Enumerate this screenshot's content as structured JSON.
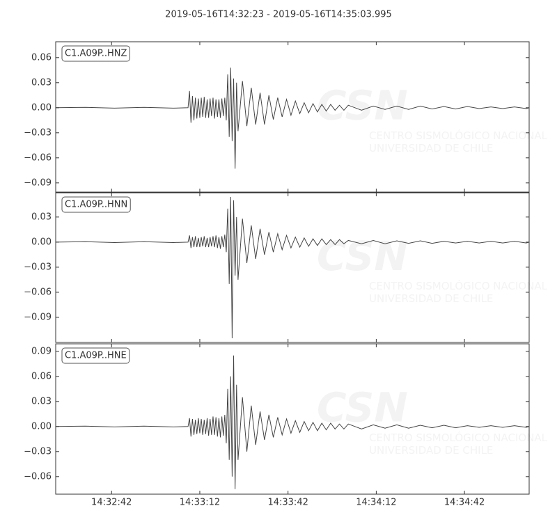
{
  "watermark": {
    "logo": "CSN",
    "lines": [
      "CENTRO SISMOLÓGICO NACIONAL",
      "UNIVERSIDAD DE CHILE"
    ]
  },
  "chart_data": [
    {
      "type": "line",
      "title": "2019-05-16T14:32:23  -  2019-05-16T14:35:03.995",
      "label": "C1.A09P..HNZ",
      "color": "#444444",
      "x": [
        0,
        10,
        20,
        30,
        40,
        45,
        45.5,
        46,
        46.5,
        47,
        47.5,
        48,
        48.5,
        49,
        49.5,
        50,
        50.5,
        51,
        51.5,
        52,
        52.5,
        53,
        53.5,
        54,
        54.5,
        55,
        55.5,
        56,
        56.5,
        57,
        57.5,
        58,
        58.5,
        59,
        59.5,
        60,
        60.5,
        61,
        61.5,
        62,
        63.5,
        65,
        66.5,
        68,
        69.5,
        71,
        72.5,
        74,
        75.5,
        77,
        78.5,
        80,
        81.5,
        83,
        84.5,
        86,
        87.5,
        89,
        90.5,
        92,
        93.5,
        95,
        96.5,
        98,
        99.5,
        104,
        108,
        112,
        116,
        120,
        124,
        128,
        132,
        136,
        140,
        144,
        148,
        152,
        156,
        160,
        160.995
      ],
      "values": [
        0,
        0.0005,
        -0.0005,
        0.0005,
        -0.0005,
        0,
        0.02,
        -0.018,
        0.014,
        -0.015,
        0.012,
        -0.013,
        0.011,
        -0.012,
        0.012,
        -0.011,
        0.013,
        -0.012,
        0.01,
        -0.012,
        0.011,
        -0.01,
        0.012,
        -0.013,
        0.01,
        -0.011,
        0.01,
        -0.012,
        0.011,
        -0.01,
        0.012,
        -0.015,
        0.04,
        -0.035,
        0.048,
        -0.04,
        0.035,
        -0.073,
        0.03,
        -0.028,
        0.032,
        -0.022,
        0.024,
        -0.02,
        0.018,
        -0.02,
        0.015,
        -0.014,
        0.012,
        -0.011,
        0.01,
        -0.009,
        0.008,
        -0.007,
        0.006,
        -0.006,
        0.005,
        -0.005,
        0.004,
        -0.004,
        0.004,
        -0.003,
        0.003,
        -0.003,
        0.003,
        -0.003,
        0.002,
        -0.002,
        0.002,
        -0.002,
        0.002,
        -0.0015,
        0.0015,
        -0.0015,
        0.0015,
        -0.001,
        0.001,
        -0.001,
        0.001,
        -0.001,
        0
      ],
      "xlim": [
        0,
        160.995
      ],
      "xticks": [
        19,
        49,
        79,
        109,
        139
      ],
      "ylim": [
        -0.101,
        0.079
      ],
      "yticks": [
        {
          "value": -0.09,
          "label": "−0.09"
        },
        {
          "value": -0.06,
          "label": "−0.06"
        },
        {
          "value": -0.03,
          "label": "−0.03"
        },
        {
          "value": 0,
          "label": "0.00"
        },
        {
          "value": 0.03,
          "label": "0.03"
        },
        {
          "value": 0.06,
          "label": "0.06"
        }
      ]
    },
    {
      "type": "line",
      "label": "C1.A09P..HNN",
      "color": "#444444",
      "x": [
        0,
        10,
        20,
        30,
        40,
        45,
        45.5,
        46,
        46.5,
        47,
        47.5,
        48,
        48.5,
        49,
        49.5,
        50,
        50.5,
        51,
        51.5,
        52,
        52.5,
        53,
        53.5,
        54,
        54.5,
        55,
        55.5,
        56,
        56.5,
        57,
        57.5,
        58,
        58.5,
        59,
        59.5,
        60,
        60.5,
        61,
        61.5,
        62,
        63.5,
        65,
        66.5,
        68,
        69.5,
        71,
        72.5,
        74,
        75.5,
        77,
        78.5,
        80,
        81.5,
        83,
        84.5,
        86,
        87.5,
        89,
        90.5,
        92,
        93.5,
        95,
        96.5,
        98,
        99.5,
        104,
        108,
        112,
        116,
        120,
        124,
        128,
        132,
        136,
        140,
        144,
        148,
        152,
        156,
        160,
        160.995
      ],
      "values": [
        0,
        0.0005,
        -0.0005,
        0.0005,
        -0.0005,
        0,
        0.008,
        -0.007,
        0.006,
        -0.006,
        0.007,
        -0.006,
        0.005,
        -0.006,
        0.006,
        -0.005,
        0.007,
        -0.006,
        0.005,
        -0.006,
        0.006,
        -0.005,
        0.007,
        -0.006,
        0.008,
        -0.007,
        0.006,
        -0.008,
        0.007,
        -0.006,
        0.009,
        -0.012,
        0.04,
        -0.05,
        0.054,
        -0.115,
        0.05,
        -0.04,
        0.03,
        -0.045,
        0.028,
        -0.025,
        0.02,
        -0.02,
        0.016,
        -0.015,
        0.012,
        -0.012,
        0.01,
        -0.009,
        0.008,
        -0.007,
        0.006,
        -0.006,
        0.005,
        -0.005,
        0.004,
        -0.004,
        0.004,
        -0.003,
        0.003,
        -0.003,
        0.003,
        -0.002,
        0.002,
        -0.002,
        0.002,
        -0.002,
        0.0015,
        -0.0015,
        0.0015,
        -0.0015,
        0.001,
        -0.001,
        0.001,
        -0.001,
        0.001,
        -0.001,
        0.001,
        -0.001,
        0
      ],
      "xlim": [
        0,
        160.995
      ],
      "xticks": [
        19,
        49,
        79,
        109,
        139
      ],
      "ylim": [
        -0.12,
        0.059
      ],
      "yticks": [
        {
          "value": -0.09,
          "label": "−0.09"
        },
        {
          "value": -0.06,
          "label": "−0.06"
        },
        {
          "value": -0.03,
          "label": "−0.03"
        },
        {
          "value": 0,
          "label": "0.00"
        },
        {
          "value": 0.03,
          "label": "0.03"
        }
      ]
    },
    {
      "type": "line",
      "label": "C1.A09P..HNE",
      "color": "#444444",
      "x": [
        0,
        10,
        20,
        30,
        40,
        45,
        45.5,
        46,
        46.5,
        47,
        47.5,
        48,
        48.5,
        49,
        49.5,
        50,
        50.5,
        51,
        51.5,
        52,
        52.5,
        53,
        53.5,
        54,
        54.5,
        55,
        55.5,
        56,
        56.5,
        57,
        57.5,
        58,
        58.5,
        59,
        59.5,
        60,
        60.5,
        61,
        61.5,
        62,
        63.5,
        65,
        66.5,
        68,
        69.5,
        71,
        72.5,
        74,
        75.5,
        77,
        78.5,
        80,
        81.5,
        83,
        84.5,
        86,
        87.5,
        89,
        90.5,
        92,
        93.5,
        95,
        96.5,
        98,
        99.5,
        104,
        108,
        112,
        116,
        120,
        124,
        128,
        132,
        136,
        140,
        144,
        148,
        152,
        156,
        160,
        160.995
      ],
      "values": [
        0,
        0.0005,
        -0.0005,
        0.0005,
        -0.0005,
        0,
        0.01,
        -0.012,
        0.009,
        -0.01,
        0.008,
        -0.009,
        0.01,
        -0.008,
        0.009,
        -0.01,
        0.008,
        -0.009,
        0.01,
        -0.011,
        0.009,
        -0.01,
        0.012,
        -0.01,
        0.011,
        -0.012,
        0.01,
        -0.013,
        0.012,
        -0.011,
        0.014,
        -0.02,
        0.045,
        -0.04,
        0.06,
        -0.06,
        0.085,
        -0.075,
        0.05,
        -0.04,
        0.035,
        -0.03,
        0.025,
        -0.022,
        0.018,
        -0.016,
        0.014,
        -0.013,
        0.011,
        -0.01,
        0.009,
        -0.008,
        0.007,
        -0.007,
        0.006,
        -0.005,
        0.005,
        -0.005,
        0.004,
        -0.004,
        0.004,
        -0.003,
        0.003,
        -0.003,
        0.003,
        -0.003,
        0.002,
        -0.002,
        0.002,
        -0.002,
        0.0015,
        -0.0015,
        0.0015,
        -0.0015,
        0.001,
        -0.001,
        0.001,
        -0.001,
        0.001,
        -0.001,
        0
      ],
      "xlim": [
        0,
        160.995
      ],
      "xticks": [
        {
          "value": 19,
          "label": "14:32:42"
        },
        {
          "value": 49,
          "label": "14:33:12"
        },
        {
          "value": 79,
          "label": "14:33:42"
        },
        {
          "value": 109,
          "label": "14:34:12"
        },
        {
          "value": 139,
          "label": "14:34:42"
        }
      ],
      "ylim": [
        -0.081,
        0.099
      ],
      "yticks": [
        {
          "value": -0.06,
          "label": "−0.06"
        },
        {
          "value": -0.03,
          "label": "−0.03"
        },
        {
          "value": 0,
          "label": "0.00"
        },
        {
          "value": 0.03,
          "label": "0.03"
        },
        {
          "value": 0.06,
          "label": "0.06"
        },
        {
          "value": 0.09,
          "label": "0.09"
        }
      ]
    }
  ]
}
